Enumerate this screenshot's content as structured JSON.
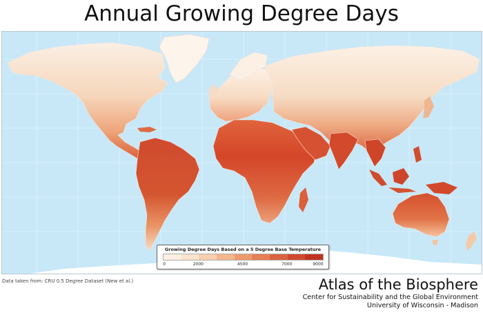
{
  "title": "Annual Growing Degree Days",
  "map": {
    "ocean_color": "#c8e8f8",
    "graticule_color": "#dff1fb",
    "border_color": "#f3e6dc"
  },
  "legend": {
    "title": "Growing Degree Days Based on a 5 Degree Base Temperature",
    "ticks": [
      "0",
      "2000",
      "4500",
      "7000",
      "9000"
    ],
    "tick_values": [
      0,
      2000,
      4500,
      7000,
      9000
    ],
    "colors": [
      "#fdf0e2",
      "#fbe3cc",
      "#f8cfae",
      "#f4b68c",
      "#ee9a6c",
      "#e67f52",
      "#db6440",
      "#d04a2f",
      "#c13223"
    ]
  },
  "source": "Data taken from: CRU 0.5 Degree Dataset (New et al.)",
  "brand": {
    "title": "Atlas of the Biosphere",
    "line1": "Center for Sustainability and the Global Environment",
    "line2": "University of Wisconsin - Madison"
  }
}
